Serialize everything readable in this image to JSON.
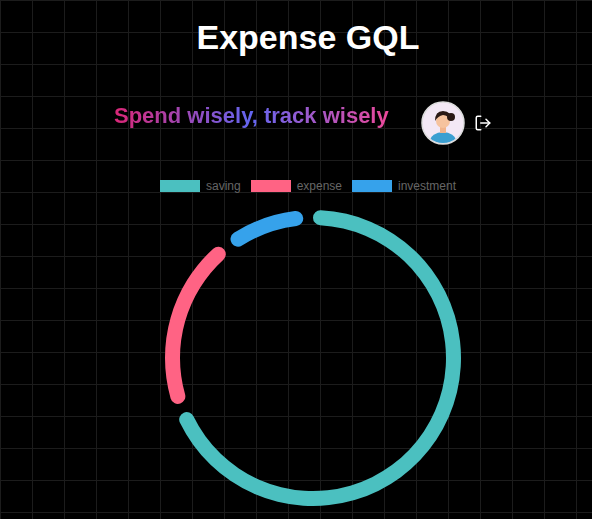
{
  "chart_data": {
    "type": "pie",
    "title": "Expense GQL",
    "subtitle": "Spend wisely, track wisely",
    "categories": [
      "saving",
      "expense",
      "investment"
    ],
    "values": [
      71,
      20,
      9
    ],
    "colors": [
      "#4bc0c0",
      "#ff6384",
      "#36a2eb"
    ],
    "legend": "top"
  }
}
